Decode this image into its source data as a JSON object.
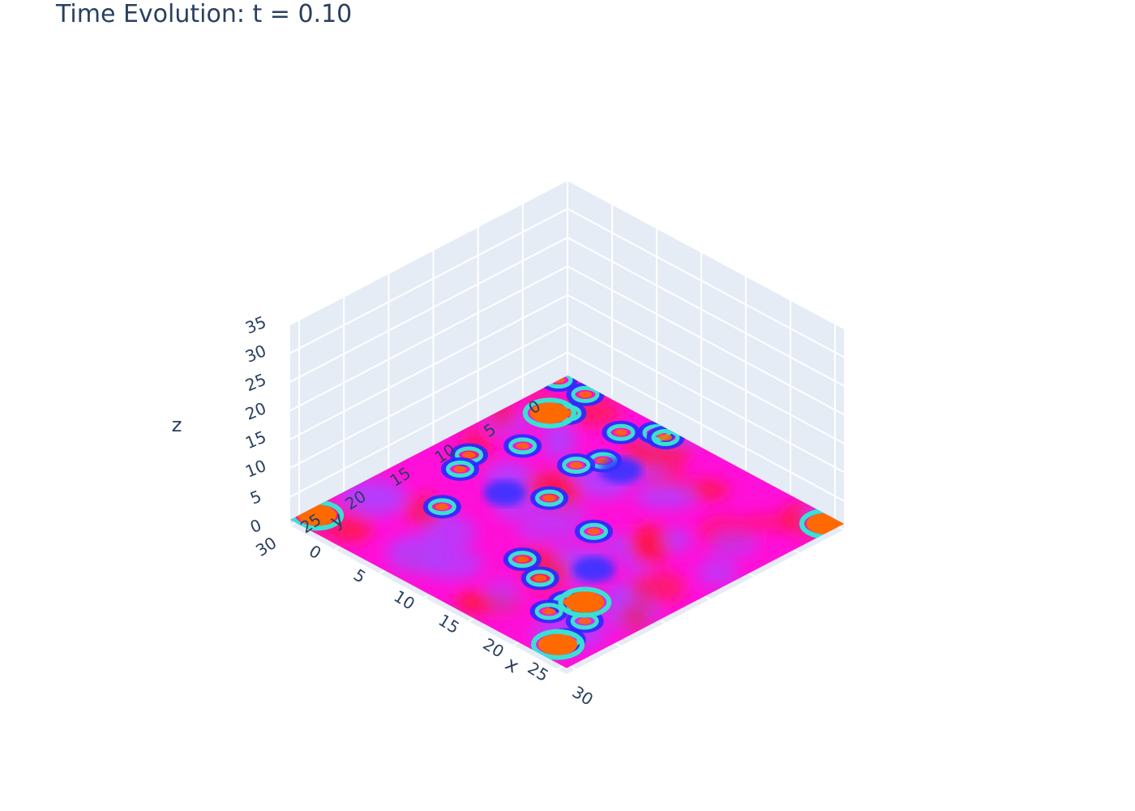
{
  "chart_data": {
    "type": "surface",
    "title": "Time Evolution: t = 0.10",
    "xlabel": "x",
    "ylabel": "y",
    "zlabel": "z",
    "x_range": [
      0,
      31
    ],
    "y_range": [
      0,
      31
    ],
    "z_range": [
      0,
      35
    ],
    "x_ticks": [
      "0",
      "5",
      "10",
      "15",
      "20",
      "25",
      "30"
    ],
    "y_ticks": [
      "0",
      "5",
      "10",
      "15",
      "20",
      "25",
      "30"
    ],
    "z_ticks": [
      "0",
      "5",
      "10",
      "15",
      "20",
      "25",
      "30",
      "35"
    ],
    "grid": true,
    "surface_level": 1,
    "colorscale": "hsv",
    "colors": {
      "pane": "#e5ecf6",
      "grid": "#ffffff",
      "text": "#2a3f5f",
      "surface_main": "#ff10d8",
      "surface_red": "#ff1744",
      "surface_violet": "#b040ff",
      "surface_blue": "#3030ff",
      "surface_orange": "#ff6a00",
      "surface_cyan": "#3ae0d0"
    },
    "features": [
      {
        "kind": "glider",
        "x": 4,
        "y": 4
      },
      {
        "kind": "glider",
        "x": 12,
        "y": 14
      },
      {
        "kind": "glider",
        "x": 18,
        "y": 15
      },
      {
        "kind": "glider",
        "x": 9,
        "y": 3
      },
      {
        "kind": "glider",
        "x": 11,
        "y": 1
      },
      {
        "kind": "glider",
        "x": 17,
        "y": 22
      },
      {
        "kind": "glider",
        "x": 24,
        "y": 24
      },
      {
        "kind": "glider",
        "x": 20,
        "y": 23
      },
      {
        "kind": "glider",
        "x": 7,
        "y": 21
      },
      {
        "kind": "glider",
        "x": 3,
        "y": 1
      },
      {
        "kind": "glider",
        "x": 11,
        "y": 7
      },
      {
        "kind": "glider",
        "x": 10,
        "y": 9
      },
      {
        "kind": "glider",
        "x": 5,
        "y": 10
      },
      {
        "kind": "glider",
        "x": 3,
        "y": 14
      },
      {
        "kind": "glider",
        "x": 4,
        "y": 16
      },
      {
        "kind": "glider",
        "x": 0,
        "y": 1
      },
      {
        "kind": "glider",
        "x": 28,
        "y": 28
      },
      {
        "kind": "glider",
        "x": 24,
        "y": 26
      },
      {
        "kind": "glider",
        "x": 27,
        "y": 25
      },
      {
        "kind": "glider",
        "x": 12,
        "y": 1
      },
      {
        "kind": "blob",
        "x": 1,
        "y": 29
      },
      {
        "kind": "blob",
        "x": 30,
        "y": 1
      },
      {
        "kind": "blob",
        "x": 28,
        "y": 29
      },
      {
        "kind": "blob",
        "x": 3,
        "y": 5
      },
      {
        "kind": "blob",
        "x": 25,
        "y": 23
      },
      {
        "kind": "dark",
        "x": 22,
        "y": 19
      },
      {
        "kind": "dark",
        "x": 13,
        "y": 7
      },
      {
        "kind": "dark",
        "x": 9,
        "y": 16
      }
    ]
  }
}
